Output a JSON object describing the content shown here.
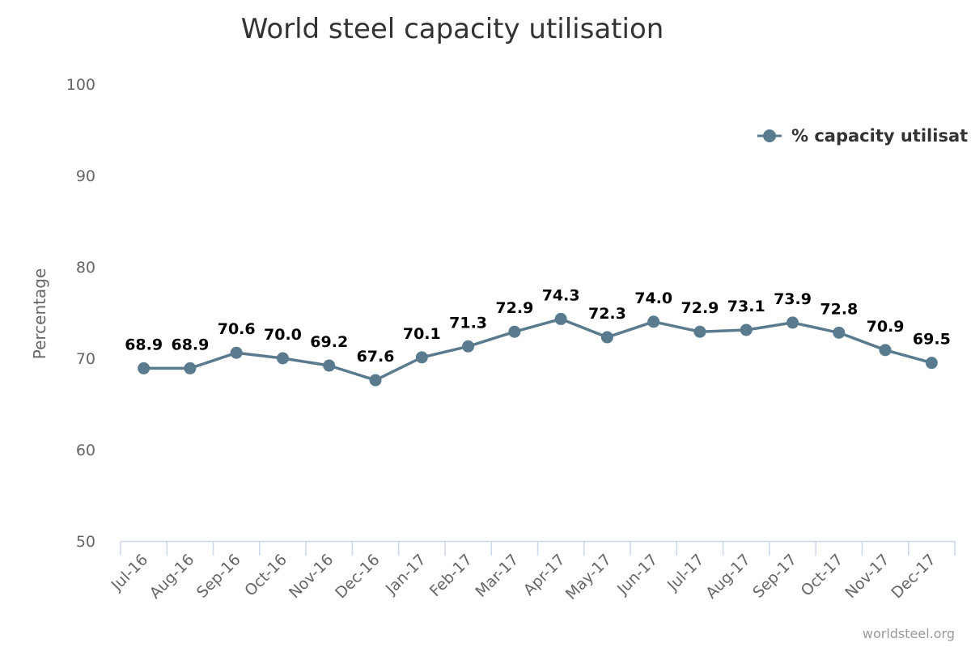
{
  "chart_data": {
    "type": "line",
    "title": "World steel capacity utilisation",
    "ylabel": "Percentage",
    "xlabel": "",
    "categories": [
      "Jul-16",
      "Aug-16",
      "Sep-16",
      "Oct-16",
      "Nov-16",
      "Dec-16",
      "Jan-17",
      "Feb-17",
      "Mar-17",
      "Apr-17",
      "May-17",
      "Jun-17",
      "Jul-17",
      "Aug-17",
      "Sep-17",
      "Oct-17",
      "Nov-17",
      "Dec-17"
    ],
    "series": [
      {
        "name": "% capacity utilisat",
        "values": [
          68.9,
          68.9,
          70.6,
          70.0,
          69.2,
          67.6,
          70.1,
          71.3,
          72.9,
          74.3,
          72.3,
          74.0,
          72.9,
          73.1,
          73.9,
          72.8,
          70.9,
          69.5
        ],
        "data_labels": [
          "68.9",
          "68.9",
          "70.6",
          "70.0",
          "69.2",
          "67.6",
          "70.1",
          "71.3",
          "72.9",
          "74.3",
          "72.3",
          "74.0",
          "72.9",
          "73.1",
          "73.9",
          "72.8",
          "70.9",
          "69.5"
        ],
        "color": "#5a7a8e"
      }
    ],
    "ylim": [
      50,
      100
    ],
    "yticks": [
      "50",
      "60",
      "70",
      "80",
      "90",
      "100"
    ],
    "grid": false,
    "legend_position": "top-right"
  },
  "credit": "worldsteel.org"
}
